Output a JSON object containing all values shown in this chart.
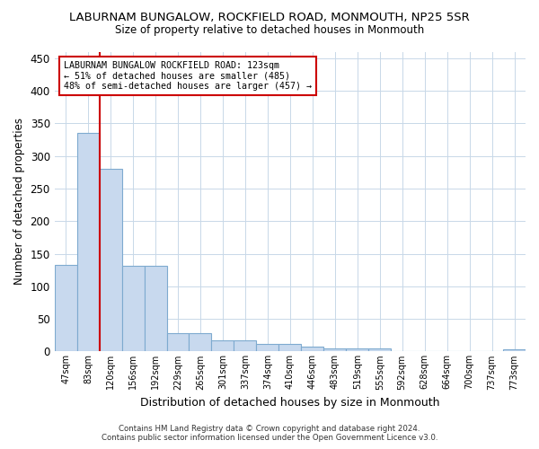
{
  "title": "LABURNAM BUNGALOW, ROCKFIELD ROAD, MONMOUTH, NP25 5SR",
  "subtitle": "Size of property relative to detached houses in Monmouth",
  "xlabel": "Distribution of detached houses by size in Monmouth",
  "ylabel": "Number of detached properties",
  "categories": [
    "47sqm",
    "83sqm",
    "120sqm",
    "156sqm",
    "192sqm",
    "229sqm",
    "265sqm",
    "301sqm",
    "337sqm",
    "374sqm",
    "410sqm",
    "446sqm",
    "483sqm",
    "519sqm",
    "555sqm",
    "592sqm",
    "628sqm",
    "664sqm",
    "700sqm",
    "737sqm",
    "773sqm"
  ],
  "values": [
    133,
    335,
    280,
    132,
    132,
    28,
    28,
    17,
    17,
    11,
    11,
    7,
    5,
    5,
    4,
    0,
    0,
    0,
    0,
    0,
    3
  ],
  "bar_color": "#c8d9ee",
  "bar_edge_color": "#7eaacf",
  "vline_color": "#cc0000",
  "vline_x_idx": 1.5,
  "annotation_text": "LABURNAM BUNGALOW ROCKFIELD ROAD: 123sqm\n← 51% of detached houses are smaller (485)\n48% of semi-detached houses are larger (457) →",
  "annotation_box_color": "#ffffff",
  "annotation_box_edge": "#cc0000",
  "ylim": [
    0,
    460
  ],
  "yticks": [
    0,
    50,
    100,
    150,
    200,
    250,
    300,
    350,
    400,
    450
  ],
  "footer_line1": "Contains HM Land Registry data © Crown copyright and database right 2024.",
  "footer_line2": "Contains public sector information licensed under the Open Government Licence v3.0.",
  "bg_color": "#ffffff",
  "grid_color": "#c8d8e8"
}
